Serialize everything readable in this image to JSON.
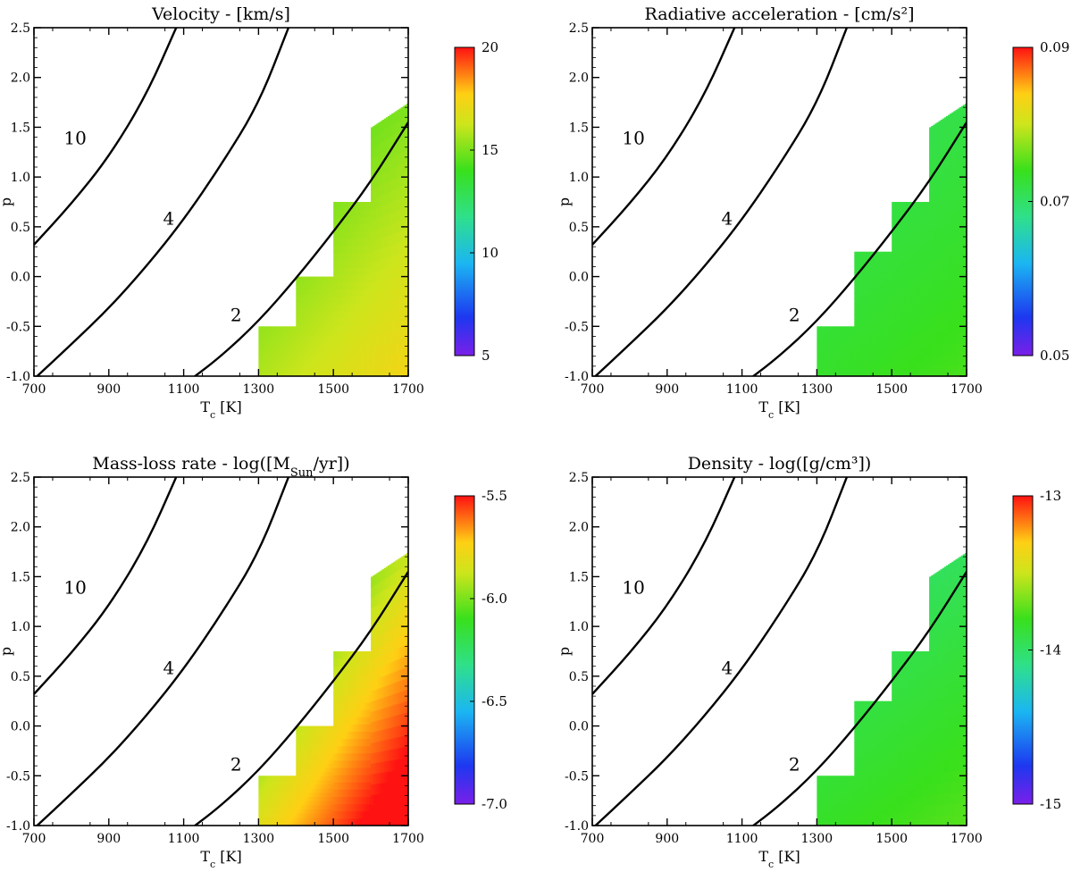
{
  "chart_data": [
    {
      "type": "heatmap",
      "title": "Velocity - [km/s]",
      "xlabel": "T_c [K]",
      "ylabel": "p",
      "xlim": [
        700,
        1700
      ],
      "ylim": [
        -1.0,
        2.5
      ],
      "xticks": [
        "700",
        "900",
        "1100",
        "1300",
        "1500",
        "1700"
      ],
      "yticks": [
        "-1.0",
        "-0.5",
        "0.0",
        "0.5",
        "1.0",
        "1.5",
        "2.0",
        "2.5"
      ],
      "colorbar": {
        "min": 5,
        "max": 20,
        "ticks": [
          "5",
          "10",
          "15",
          "20"
        ]
      },
      "contours": [
        {
          "label": "10",
          "points": [
            [
              700,
              0.32
            ],
            [
              800,
              0.73
            ],
            [
              900,
              1.2
            ],
            [
              1000,
              1.82
            ],
            [
              1080,
              2.5
            ]
          ]
        },
        {
          "label": "4",
          "points": [
            [
              700,
              -1.03
            ],
            [
              800,
              -0.68
            ],
            [
              900,
              -0.32
            ],
            [
              1000,
              0.1
            ],
            [
              1100,
              0.57
            ],
            [
              1200,
              1.12
            ],
            [
              1300,
              1.73
            ],
            [
              1380,
              2.5
            ]
          ]
        },
        {
          "label": "2",
          "points": [
            [
              1120,
              -1.03
            ],
            [
              1200,
              -0.8
            ],
            [
              1300,
              -0.45
            ],
            [
              1400,
              -0.02
            ],
            [
              1500,
              0.45
            ],
            [
              1600,
              0.95
            ],
            [
              1700,
              1.55
            ]
          ]
        }
      ],
      "region": {
        "steps": [
          [
            1200,
            -1.0
          ],
          [
            1300,
            -0.5
          ],
          [
            1400,
            0.0
          ],
          [
            1500,
            0.75
          ],
          [
            1600,
            1.5
          ],
          [
            1700,
            1.75
          ]
        ]
      },
      "field": {
        "a": 14.5,
        "bx": 4.0,
        "by": -3.0,
        "s": 0.2
      }
    },
    {
      "type": "heatmap",
      "title": "Radiative acceleration - [cm/s²]",
      "xlabel": "T_c [K]",
      "ylabel": "p",
      "xlim": [
        700,
        1700
      ],
      "ylim": [
        -1.0,
        2.5
      ],
      "xticks": [
        "700",
        "900",
        "1100",
        "1300",
        "1500",
        "1700"
      ],
      "yticks": [
        "-1.0",
        "-0.5",
        "0.0",
        "0.5",
        "1.0",
        "1.5",
        "2.0",
        "2.5"
      ],
      "colorbar": {
        "min": 0.05,
        "max": 0.09,
        "ticks": [
          "0.05",
          "0.07",
          "0.09"
        ]
      },
      "contours": [
        {
          "label": "10",
          "points": [
            [
              700,
              0.32
            ],
            [
              800,
              0.73
            ],
            [
              900,
              1.2
            ],
            [
              1000,
              1.82
            ],
            [
              1080,
              2.5
            ]
          ]
        },
        {
          "label": "4",
          "points": [
            [
              700,
              -1.03
            ],
            [
              800,
              -0.68
            ],
            [
              900,
              -0.32
            ],
            [
              1000,
              0.1
            ],
            [
              1100,
              0.57
            ],
            [
              1200,
              1.12
            ],
            [
              1300,
              1.73
            ],
            [
              1380,
              2.5
            ]
          ]
        },
        {
          "label": "2",
          "points": [
            [
              1120,
              -1.03
            ],
            [
              1200,
              -0.8
            ],
            [
              1300,
              -0.45
            ],
            [
              1400,
              -0.02
            ],
            [
              1500,
              0.45
            ],
            [
              1600,
              0.95
            ],
            [
              1700,
              1.55
            ]
          ]
        }
      ],
      "region": {
        "steps": [
          [
            1200,
            -1.0
          ],
          [
            1300,
            -0.5
          ],
          [
            1400,
            0.25
          ],
          [
            1500,
            0.75
          ],
          [
            1600,
            1.5
          ],
          [
            1700,
            1.75
          ]
        ]
      },
      "field": {
        "a": 0.0715,
        "bx": 0.004,
        "by": -0.004,
        "s": 0.2
      }
    },
    {
      "type": "heatmap",
      "title": "Mass-loss rate - log([M_Sun/yr])",
      "xlabel": "T_c [K]",
      "ylabel": "p",
      "xlim": [
        700,
        1700
      ],
      "ylim": [
        -1.0,
        2.5
      ],
      "xticks": [
        "700",
        "900",
        "1100",
        "1300",
        "1500",
        "1700"
      ],
      "yticks": [
        "-1.0",
        "-0.5",
        "0.0",
        "0.5",
        "1.0",
        "1.5",
        "2.0",
        "2.5"
      ],
      "colorbar": {
        "min": -7.0,
        "max": -5.5,
        "ticks": [
          "-7.0",
          "-6.5",
          "-6.0",
          "-5.5"
        ]
      },
      "contours": [
        {
          "label": "10",
          "points": [
            [
              700,
              0.32
            ],
            [
              800,
              0.73
            ],
            [
              900,
              1.2
            ],
            [
              1000,
              1.82
            ],
            [
              1080,
              2.5
            ]
          ]
        },
        {
          "label": "4",
          "points": [
            [
              700,
              -1.03
            ],
            [
              800,
              -0.68
            ],
            [
              900,
              -0.32
            ],
            [
              1000,
              0.1
            ],
            [
              1100,
              0.57
            ],
            [
              1200,
              1.12
            ],
            [
              1300,
              1.73
            ],
            [
              1380,
              2.5
            ]
          ]
        },
        {
          "label": "2",
          "points": [
            [
              1120,
              -1.03
            ],
            [
              1200,
              -0.8
            ],
            [
              1300,
              -0.45
            ],
            [
              1400,
              -0.02
            ],
            [
              1500,
              0.45
            ],
            [
              1600,
              0.95
            ],
            [
              1700,
              1.55
            ]
          ]
        }
      ],
      "region": {
        "steps": [
          [
            1200,
            -1.0
          ],
          [
            1300,
            -0.5
          ],
          [
            1400,
            0.0
          ],
          [
            1500,
            0.75
          ],
          [
            1600,
            1.5
          ],
          [
            1700,
            1.75
          ]
        ]
      },
      "field": {
        "a": -6.15,
        "bx": 1.2,
        "by": -0.7,
        "s": 0.2
      }
    },
    {
      "type": "heatmap",
      "title": "Density - log([g/cm³])",
      "xlabel": "T_c [K]",
      "ylabel": "p",
      "xlim": [
        700,
        1700
      ],
      "ylim": [
        -1.0,
        2.5
      ],
      "xticks": [
        "700",
        "900",
        "1100",
        "1300",
        "1500",
        "1700"
      ],
      "yticks": [
        "-1.0",
        "-0.5",
        "0.0",
        "0.5",
        "1.0",
        "1.5",
        "2.0",
        "2.5"
      ],
      "colorbar": {
        "min": -15,
        "max": -13,
        "ticks": [
          "-15",
          "-14",
          "-13"
        ]
      },
      "contours": [
        {
          "label": "10",
          "points": [
            [
              700,
              0.32
            ],
            [
              800,
              0.73
            ],
            [
              900,
              1.2
            ],
            [
              1000,
              1.82
            ],
            [
              1080,
              2.5
            ]
          ]
        },
        {
          "label": "4",
          "points": [
            [
              700,
              -1.03
            ],
            [
              800,
              -0.68
            ],
            [
              900,
              -0.32
            ],
            [
              1000,
              0.1
            ],
            [
              1100,
              0.57
            ],
            [
              1200,
              1.12
            ],
            [
              1300,
              1.73
            ],
            [
              1380,
              2.5
            ]
          ]
        },
        {
          "label": "2",
          "points": [
            [
              1120,
              -1.03
            ],
            [
              1200,
              -0.8
            ],
            [
              1300,
              -0.45
            ],
            [
              1400,
              -0.02
            ],
            [
              1500,
              0.45
            ],
            [
              1600,
              0.95
            ],
            [
              1700,
              1.55
            ]
          ]
        }
      ],
      "region": {
        "steps": [
          [
            1200,
            -1.0
          ],
          [
            1300,
            -0.5
          ],
          [
            1400,
            0.25
          ],
          [
            1500,
            0.75
          ],
          [
            1600,
            1.5
          ],
          [
            1700,
            1.75
          ]
        ]
      },
      "field": {
        "a": -13.95,
        "bx": 0.25,
        "by": -0.3,
        "s": 0.15
      }
    }
  ]
}
